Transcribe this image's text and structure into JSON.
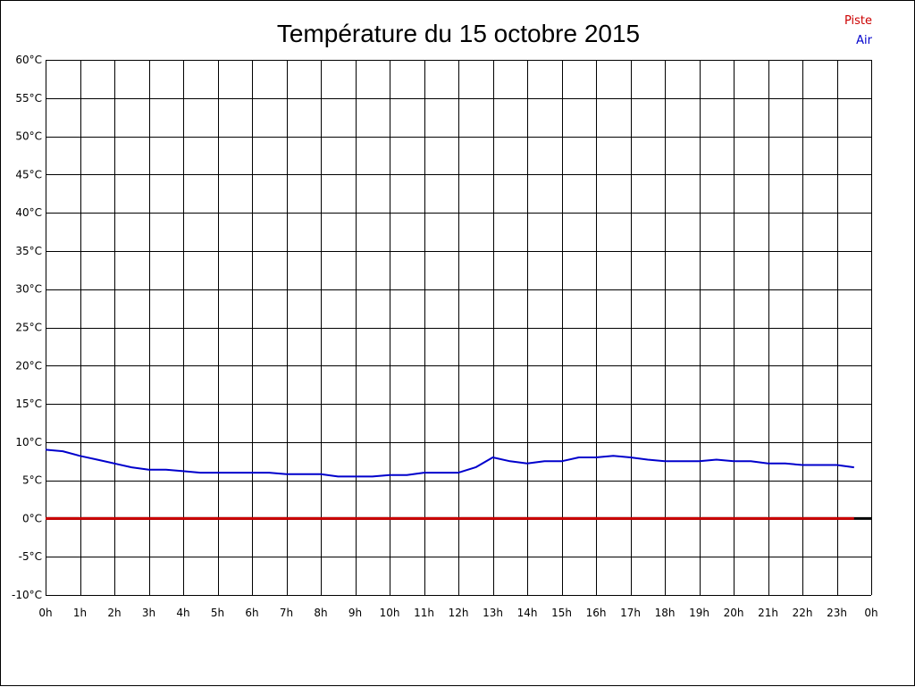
{
  "chart_data": {
    "type": "line",
    "title": "Température du 15 octobre 2015",
    "xlabel": "",
    "ylabel": "",
    "x_tick_labels": [
      "0h",
      "1h",
      "2h",
      "3h",
      "4h",
      "5h",
      "6h",
      "7h",
      "8h",
      "9h",
      "10h",
      "11h",
      "12h",
      "13h",
      "14h",
      "15h",
      "16h",
      "17h",
      "18h",
      "19h",
      "20h",
      "21h",
      "22h",
      "23h",
      "0h"
    ],
    "y_tick_labels": [
      "60°C",
      "55°C",
      "50°C",
      "45°C",
      "40°C",
      "35°C",
      "30°C",
      "25°C",
      "20°C",
      "15°C",
      "10°C",
      "5°C",
      "0°C",
      "-5°C",
      "-10°C"
    ],
    "xlim": [
      0,
      24
    ],
    "ylim": [
      -10,
      60
    ],
    "y_step": 5,
    "grid": true,
    "legend_position": "top-right",
    "series": [
      {
        "name": "Piste",
        "color": "#cc0000",
        "x": [
          0,
          23.5
        ],
        "values": [
          0,
          0
        ]
      },
      {
        "name": "Air",
        "color": "#0000cc",
        "x": [
          0,
          0.5,
          1,
          1.5,
          2,
          2.5,
          3,
          3.5,
          4,
          4.5,
          5,
          5.5,
          6,
          6.5,
          7,
          7.5,
          8,
          8.5,
          9,
          9.5,
          10,
          10.5,
          11,
          11.5,
          12,
          12.5,
          13,
          13.5,
          14,
          14.5,
          15,
          15.5,
          16,
          16.5,
          17,
          17.5,
          18,
          18.5,
          19,
          19.5,
          20,
          20.5,
          21,
          21.5,
          22,
          22.5,
          23,
          23.5
        ],
        "values": [
          9.0,
          8.8,
          8.2,
          7.7,
          7.2,
          6.7,
          6.4,
          6.4,
          6.2,
          6.0,
          6.0,
          6.0,
          6.0,
          6.0,
          5.8,
          5.8,
          5.8,
          5.5,
          5.5,
          5.5,
          5.7,
          5.7,
          6.0,
          6.0,
          6.0,
          6.7,
          8.0,
          7.5,
          7.2,
          7.5,
          7.5,
          8.0,
          8.0,
          8.2,
          8.0,
          7.7,
          7.5,
          7.5,
          7.5,
          7.7,
          7.5,
          7.5,
          7.2,
          7.2,
          7.0,
          7.0,
          7.0,
          6.7
        ]
      }
    ],
    "zero_line_color": "#000000"
  }
}
